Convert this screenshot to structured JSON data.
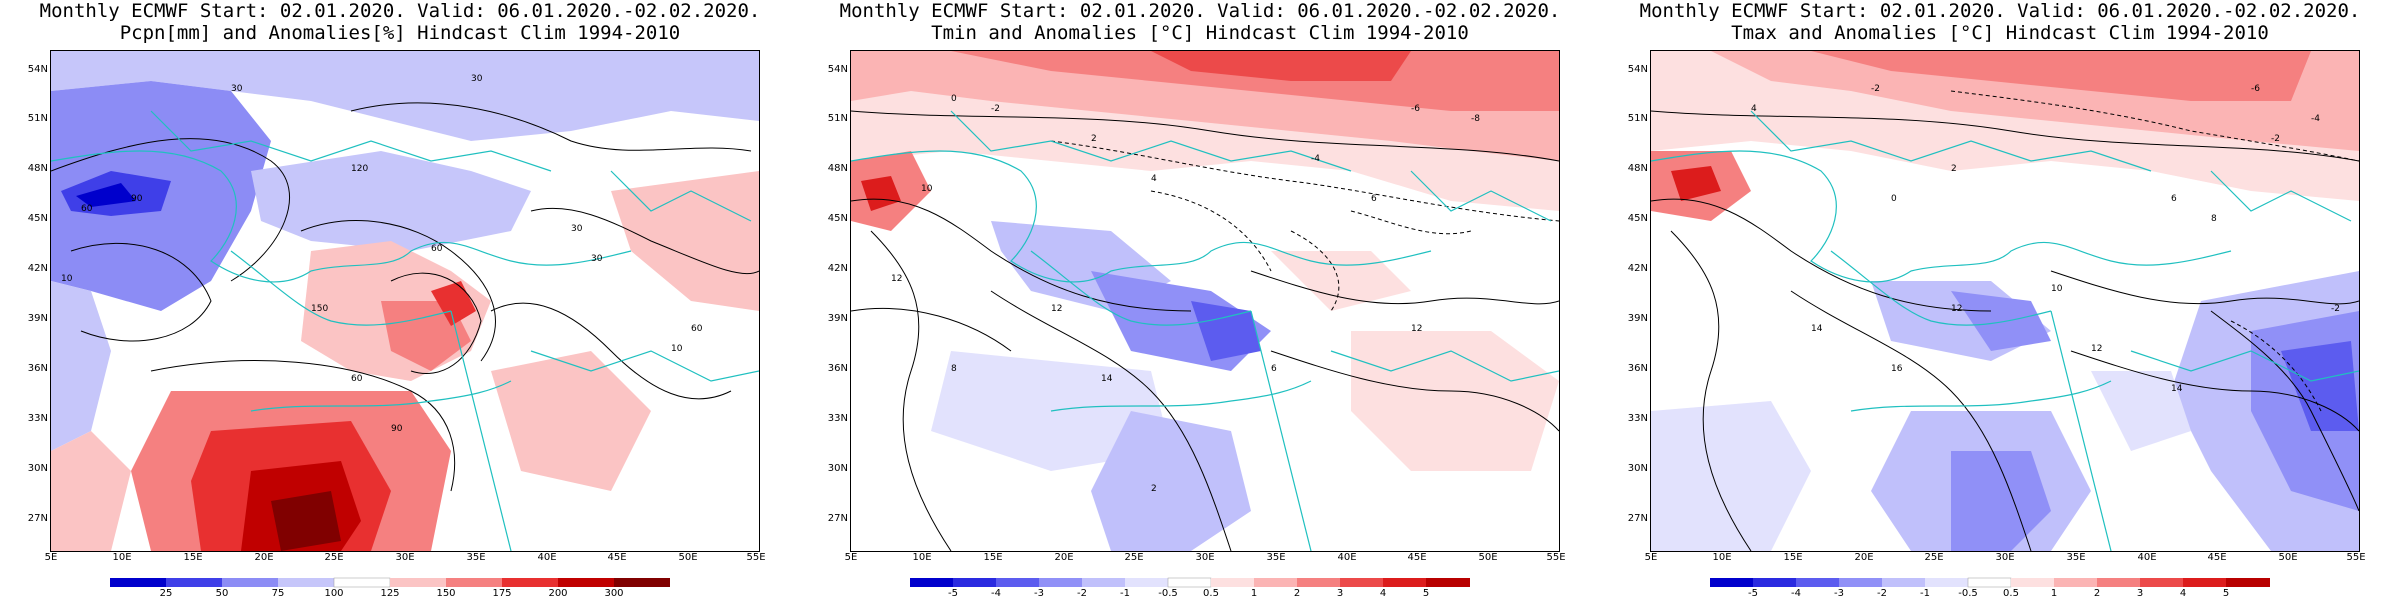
{
  "panels": [
    {
      "id": "pcpn",
      "title_line1": "Monthly ECMWF Start: 02.01.2020. Valid: 06.01.2020.-02.02.2020.",
      "title_line2": "Pcpn[mm] and Anomalies[%] Hindcast Clim 1994-2010",
      "colorbar_labels": [
        "25",
        "50",
        "75",
        "100",
        "125",
        "150",
        "175",
        "200",
        "300"
      ],
      "colorbar_colors": [
        "#0000cc",
        "#3f3fe8",
        "#8c8cf5",
        "#c6c6fa",
        "#ffffff",
        "#fbc4c4",
        "#f58080",
        "#e83030",
        "#c00000",
        "#800000"
      ],
      "contour_labels": [
        "30",
        "30",
        "60",
        "90",
        "120",
        "60",
        "30",
        "150",
        "60",
        "90",
        "30",
        "10",
        "10",
        "60"
      ]
    },
    {
      "id": "tmin",
      "title_line1": "Monthly ECMWF Start: 02.01.2020. Valid: 06.01.2020.-02.02.2020.",
      "title_line2": "Tmin and Anomalies [°C] Hindcast Clim 1994-2010",
      "colorbar_labels": [
        "-5",
        "-4",
        "-3",
        "-2",
        "-1",
        "-0.5",
        "0.5",
        "1",
        "2",
        "3",
        "4",
        "5"
      ],
      "colorbar_colors": [
        "#0000cc",
        "#2a2ae0",
        "#5c5cef",
        "#9090f7",
        "#c0c0fb",
        "#e2e2fd",
        "#ffffff",
        "#fde0e0",
        "#fbb4b4",
        "#f58080",
        "#ec4a4a",
        "#dc1c1c",
        "#b80000"
      ],
      "contour_labels": [
        "0",
        "-2",
        "-6",
        "-8",
        "2",
        "-4",
        "4",
        "6",
        "10",
        "12",
        "12",
        "14",
        "12",
        "8",
        "6",
        "2"
      ]
    },
    {
      "id": "tmax",
      "title_line1": "Monthly ECMWF Start: 02.01.2020. Valid: 06.01.2020.-02.02.2020.",
      "title_line2": "Tmax and Anomalies [°C] Hindcast Clim 1994-2010",
      "colorbar_labels": [
        "-5",
        "-4",
        "-3",
        "-2",
        "-1",
        "-0.5",
        "0.5",
        "1",
        "2",
        "3",
        "4",
        "5"
      ],
      "colorbar_colors": [
        "#0000cc",
        "#2a2ae0",
        "#5c5cef",
        "#9090f7",
        "#c0c0fb",
        "#e2e2fd",
        "#ffffff",
        "#fde0e0",
        "#fbb4b4",
        "#f58080",
        "#ec4a4a",
        "#dc1c1c",
        "#b80000"
      ],
      "contour_labels": [
        "-2",
        "-6",
        "-4",
        "-2",
        "4",
        "2",
        "0",
        "6",
        "8",
        "10",
        "12",
        "14",
        "16",
        "14",
        "12",
        "-2"
      ]
    }
  ],
  "axes": {
    "lat_labels": [
      "54N",
      "51N",
      "48N",
      "45N",
      "42N",
      "39N",
      "36N",
      "33N",
      "30N",
      "27N"
    ],
    "lon_labels": [
      "5E",
      "10E",
      "15E",
      "20E",
      "25E",
      "30E",
      "35E",
      "40E",
      "45E",
      "50E",
      "55E"
    ]
  }
}
